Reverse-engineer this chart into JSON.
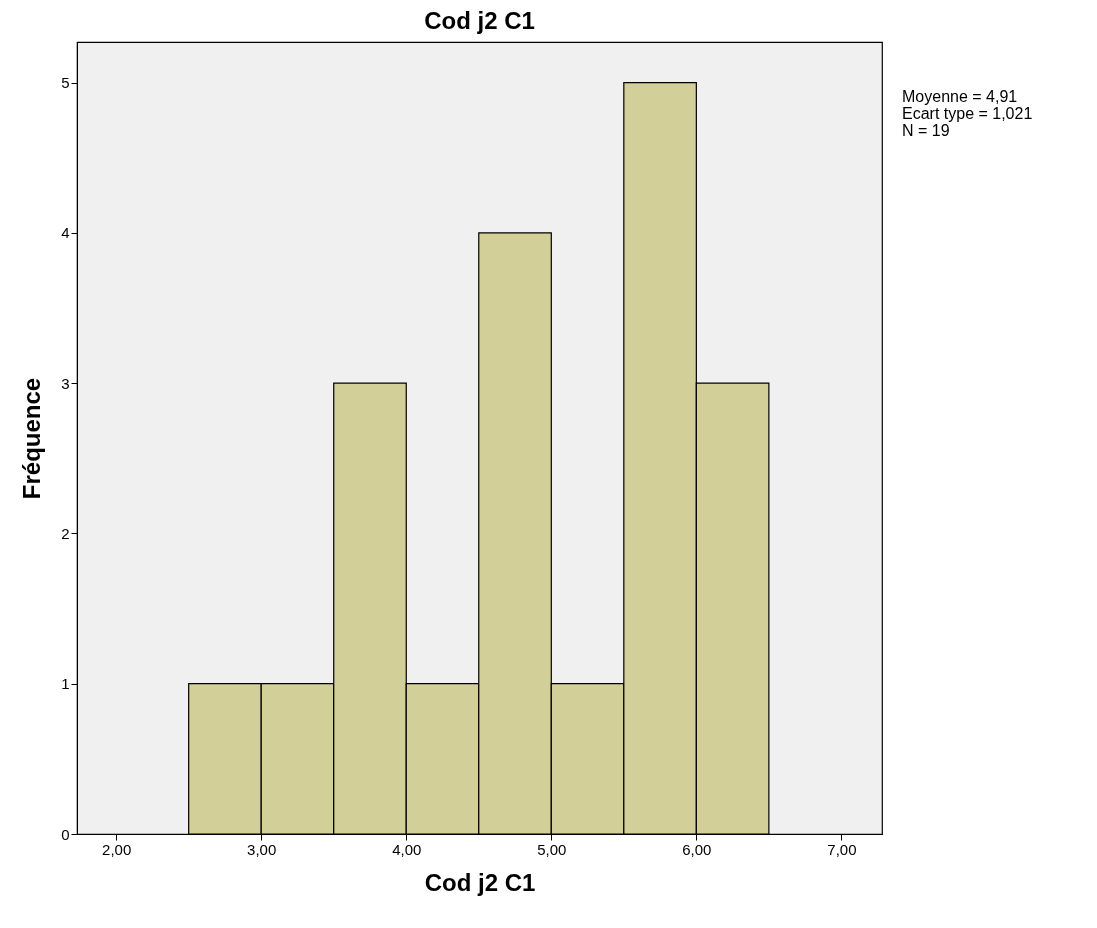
{
  "chart_data": {
    "type": "histogram",
    "title": "Cod  j2 C1",
    "xlabel": "Cod  j2 C1",
    "ylabel": "Fréquence",
    "bins": [
      2.5,
      3,
      3.5,
      4,
      4.5,
      5,
      5.5,
      6,
      6.5
    ],
    "values": [
      1,
      1,
      3,
      1,
      4,
      1,
      5,
      3
    ],
    "color": "#d3cf98",
    "xlim": [
      1.73,
      7.28
    ],
    "xticks": [
      {
        "value": 2,
        "label": "2,00"
      },
      {
        "value": 3,
        "label": "3,00"
      },
      {
        "value": 4,
        "label": "4,00"
      },
      {
        "value": 5,
        "label": "5,00"
      },
      {
        "value": 6,
        "label": "6,00"
      },
      {
        "value": 7,
        "label": "7,00"
      }
    ],
    "ylim": [
      0,
      5.27
    ],
    "yticks": [
      0,
      1,
      2,
      3,
      4,
      5
    ],
    "annotations": [
      "Moyenne = 4,91",
      "Ecart type = 1,021",
      "N = 19"
    ]
  }
}
